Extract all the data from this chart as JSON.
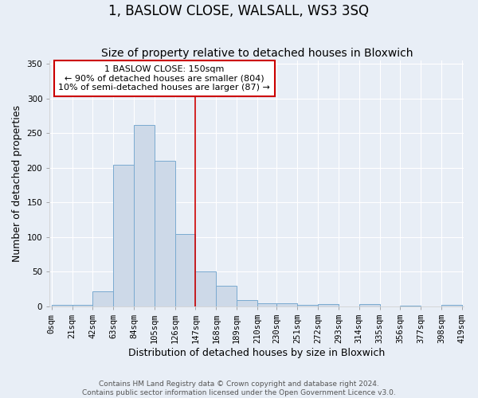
{
  "title": "1, BASLOW CLOSE, WALSALL, WS3 3SQ",
  "subtitle": "Size of property relative to detached houses in Bloxwich",
  "xlabel": "Distribution of detached houses by size in Bloxwich",
  "ylabel": "Number of detached properties",
  "bin_edges": [
    0,
    21,
    42,
    63,
    84,
    105,
    126,
    147,
    168,
    189,
    210,
    230,
    251,
    272,
    293,
    314,
    335,
    356,
    377,
    398,
    419
  ],
  "bin_heights": [
    2,
    2,
    22,
    204,
    262,
    210,
    104,
    50,
    30,
    9,
    4,
    4,
    2,
    3,
    0,
    3,
    0,
    1,
    0,
    2
  ],
  "bar_color": "#cdd9e8",
  "bar_edgecolor": "#7aaad0",
  "vline_x": 147,
  "vline_color": "#cc0000",
  "annotation_box_edgecolor": "#cc0000",
  "annotation_line1": "1 BASLOW CLOSE: 150sqm",
  "annotation_line2": "← 90% of detached houses are smaller (804)",
  "annotation_line3": "10% of semi-detached houses are larger (87) →",
  "ylim": [
    0,
    355
  ],
  "yticks": [
    0,
    50,
    100,
    150,
    200,
    250,
    300,
    350
  ],
  "tick_labels": [
    "0sqm",
    "21sqm",
    "42sqm",
    "63sqm",
    "84sqm",
    "105sqm",
    "126sqm",
    "147sqm",
    "168sqm",
    "189sqm",
    "210sqm",
    "230sqm",
    "251sqm",
    "272sqm",
    "293sqm",
    "314sqm",
    "335sqm",
    "356sqm",
    "377sqm",
    "398sqm",
    "419sqm"
  ],
  "footer1": "Contains HM Land Registry data © Crown copyright and database right 2024.",
  "footer2": "Contains public sector information licensed under the Open Government Licence v3.0.",
  "background_color": "#e8eef6",
  "grid_color": "#ffffff",
  "title_fontsize": 12,
  "subtitle_fontsize": 10,
  "axis_label_fontsize": 9,
  "tick_fontsize": 7.5,
  "footer_fontsize": 6.5
}
